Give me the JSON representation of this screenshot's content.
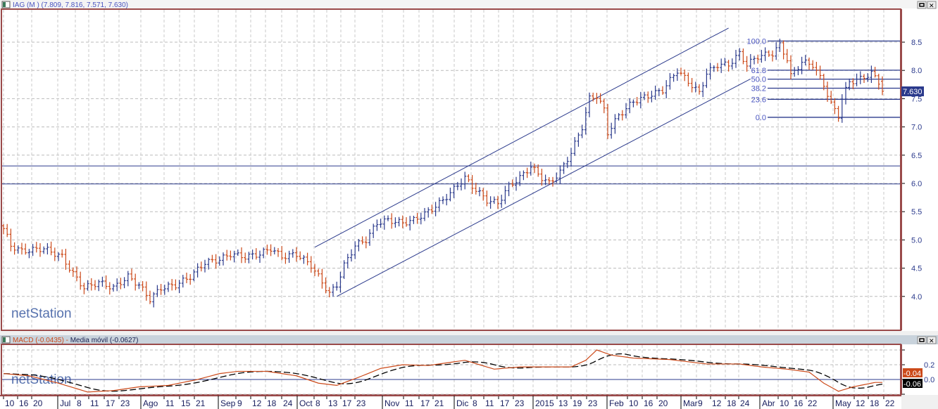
{
  "main_panel": {
    "title": "IAG (M ) (7.809, 7.816, 7.571, 7.630)",
    "last_price_label": "7.630",
    "watermark": "netStation"
  },
  "macd_panel": {
    "macd_label": "MACD (-0.0435)",
    "separator": " - ",
    "signal_label": "Media móvil (-0.0627)",
    "macd_value_label": "-0.04",
    "signal_value_label": "-0.06",
    "watermark": "netStation"
  },
  "window_buttons": {
    "maximize": "▭",
    "close": "✕"
  },
  "colors": {
    "up": "#2b3a8c",
    "down": "#cc4a1a",
    "frame": "#9a4a4a",
    "macd": "#cc4a1a",
    "signal": "#000000"
  },
  "chart_data": [
    {
      "type": "ohlc",
      "title": "IAG (M )",
      "ohlc_last": {
        "open": 7.809,
        "high": 7.816,
        "low": 7.571,
        "close": 7.63
      },
      "close_keypoints_by_bar": [
        [
          0,
          5.2
        ],
        [
          2,
          4.9
        ],
        [
          5,
          4.8
        ],
        [
          11,
          4.85
        ],
        [
          16,
          4.7
        ],
        [
          19,
          4.4
        ],
        [
          22,
          4.15
        ],
        [
          26,
          4.25
        ],
        [
          30,
          4.15
        ],
        [
          34,
          4.35
        ],
        [
          37,
          4.2
        ],
        [
          40,
          3.95
        ],
        [
          43,
          4.15
        ],
        [
          47,
          4.2
        ],
        [
          51,
          4.35
        ],
        [
          55,
          4.6
        ],
        [
          59,
          4.65
        ],
        [
          62,
          4.75
        ],
        [
          66,
          4.7
        ],
        [
          70,
          4.75
        ],
        [
          73,
          4.85
        ],
        [
          76,
          4.7
        ],
        [
          80,
          4.75
        ],
        [
          84,
          4.55
        ],
        [
          87,
          4.25
        ],
        [
          89,
          4.05
        ],
        [
          91,
          4.2
        ],
        [
          93,
          4.55
        ],
        [
          96,
          4.9
        ],
        [
          99,
          5.0
        ],
        [
          102,
          5.3
        ],
        [
          105,
          5.35
        ],
        [
          109,
          5.3
        ],
        [
          112,
          5.35
        ],
        [
          116,
          5.5
        ],
        [
          120,
          5.7
        ],
        [
          123,
          5.9
        ],
        [
          126,
          6.1
        ],
        [
          128,
          5.95
        ],
        [
          132,
          5.7
        ],
        [
          135,
          5.65
        ],
        [
          138,
          5.95
        ],
        [
          141,
          6.1
        ],
        [
          144,
          6.3
        ],
        [
          147,
          6.1
        ],
        [
          149,
          6.0
        ],
        [
          152,
          6.2
        ],
        [
          155,
          6.55
        ],
        [
          158,
          7.0
        ],
        [
          160,
          7.5
        ],
        [
          162,
          7.55
        ],
        [
          164,
          7.3
        ],
        [
          165,
          6.9
        ],
        [
          168,
          7.2
        ],
        [
          172,
          7.45
        ],
        [
          176,
          7.55
        ],
        [
          180,
          7.65
        ],
        [
          184,
          8.0
        ],
        [
          187,
          7.8
        ],
        [
          190,
          7.6
        ],
        [
          192,
          7.95
        ],
        [
          195,
          8.1
        ],
        [
          198,
          8.1
        ],
        [
          201,
          8.3
        ],
        [
          203,
          8.1
        ],
        [
          206,
          8.25
        ],
        [
          210,
          8.3
        ],
        [
          212,
          8.45
        ],
        [
          214,
          8.2
        ],
        [
          215,
          7.9
        ],
        [
          218,
          8.15
        ],
        [
          221,
          8.1
        ],
        [
          224,
          7.75
        ],
        [
          226,
          7.4
        ],
        [
          228,
          7.2
        ],
        [
          229,
          7.5
        ],
        [
          231,
          7.8
        ],
        [
          234,
          7.85
        ],
        [
          237,
          7.95
        ],
        [
          239,
          7.8
        ],
        [
          240,
          7.63
        ]
      ],
      "y_ticks": [
        "8.5",
        "8.0",
        "7.5",
        "7.0",
        "6.5",
        "6.0",
        "5.5",
        "5.0",
        "4.5",
        "4.0"
      ],
      "ylim": [
        3.6,
        8.95
      ],
      "channel": {
        "upper": [
          [
            85,
            4.87
          ],
          [
            198,
            8.75
          ]
        ],
        "lower": [
          [
            91,
            4.0
          ],
          [
            204,
            7.85
          ]
        ]
      },
      "horizontal_lines": [
        6.31,
        5.99
      ],
      "fibonacci": {
        "high": 8.52,
        "low": 7.17,
        "start_bar": 210,
        "levels": [
          {
            "label": "100.0",
            "ratio": 1.0
          },
          {
            "label": "61.8",
            "ratio": 0.618
          },
          {
            "label": "50.0",
            "ratio": 0.5
          },
          {
            "label": "38.2",
            "ratio": 0.382
          },
          {
            "label": "23.6",
            "ratio": 0.236
          },
          {
            "label": "0.0",
            "ratio": 0.0
          }
        ]
      },
      "grid": true
    },
    {
      "type": "line",
      "title": "MACD",
      "series": [
        {
          "name": "MACD",
          "keypoints_by_bar": [
            [
              0,
              0.08
            ],
            [
              7,
              0.05
            ],
            [
              15,
              -0.05
            ],
            [
              23,
              -0.17
            ],
            [
              30,
              -0.15
            ],
            [
              37,
              -0.1
            ],
            [
              45,
              -0.08
            ],
            [
              53,
              0
            ],
            [
              59,
              0.08
            ],
            [
              64,
              0.11
            ],
            [
              72,
              0.11
            ],
            [
              80,
              0.05
            ],
            [
              86,
              -0.05
            ],
            [
              91,
              -0.08
            ],
            [
              97,
              0.03
            ],
            [
              103,
              0.15
            ],
            [
              109,
              0.2
            ],
            [
              116,
              0.19
            ],
            [
              126,
              0.26
            ],
            [
              134,
              0.14
            ],
            [
              141,
              0.17
            ],
            [
              149,
              0.17
            ],
            [
              155,
              0.17
            ],
            [
              159,
              0.26
            ],
            [
              162,
              0.4
            ],
            [
              166,
              0.33
            ],
            [
              172,
              0.29
            ],
            [
              182,
              0.27
            ],
            [
              192,
              0.21
            ],
            [
              201,
              0.21
            ],
            [
              207,
              0.17
            ],
            [
              214,
              0.14
            ],
            [
              220,
              0.1
            ],
            [
              224,
              -0.05
            ],
            [
              228,
              -0.16
            ],
            [
              232,
              -0.1
            ],
            [
              238,
              -0.04
            ],
            [
              240,
              -0.04
            ]
          ]
        },
        {
          "name": "Media móvil",
          "derived": "moving average of MACD"
        }
      ],
      "y_ticks": [
        "0.2",
        "0.0"
      ],
      "zero_line": 0
    }
  ],
  "time_axis": {
    "labels": [
      {
        "t": "10",
        "m": false
      },
      {
        "t": "16",
        "m": false
      },
      {
        "t": "20",
        "m": false
      },
      {
        "t": "Jul",
        "m": true
      },
      {
        "t": "8",
        "m": false
      },
      {
        "t": "11",
        "m": false
      },
      {
        "t": "17",
        "m": false
      },
      {
        "t": "23",
        "m": false
      },
      {
        "t": "Ago",
        "m": true
      },
      {
        "t": "11",
        "m": false
      },
      {
        "t": "15",
        "m": false
      },
      {
        "t": "21",
        "m": false
      },
      {
        "t": "Sep",
        "m": true
      },
      {
        "t": "9",
        "m": false
      },
      {
        "t": "12",
        "m": false
      },
      {
        "t": "18",
        "m": false
      },
      {
        "t": "24",
        "m": false
      },
      {
        "t": "Oct",
        "m": true
      },
      {
        "t": "8",
        "m": false
      },
      {
        "t": "13",
        "m": false
      },
      {
        "t": "17",
        "m": false
      },
      {
        "t": "23",
        "m": false
      },
      {
        "t": "Nov",
        "m": true
      },
      {
        "t": "11",
        "m": false
      },
      {
        "t": "17",
        "m": false
      },
      {
        "t": "21",
        "m": false
      },
      {
        "t": "Dic",
        "m": true
      },
      {
        "t": "8",
        "m": false
      },
      {
        "t": "11",
        "m": false
      },
      {
        "t": "17",
        "m": false
      },
      {
        "t": "23",
        "m": false
      },
      {
        "t": "2015",
        "m": true
      },
      {
        "t": "13",
        "m": false
      },
      {
        "t": "19",
        "m": false
      },
      {
        "t": "23",
        "m": false
      },
      {
        "t": "Feb",
        "m": true
      },
      {
        "t": "10",
        "m": false
      },
      {
        "t": "16",
        "m": false
      },
      {
        "t": "20",
        "m": false
      },
      {
        "t": "Mar",
        "m": true
      },
      {
        "t": "9",
        "m": false
      },
      {
        "t": "12",
        "m": false
      },
      {
        "t": "18",
        "m": false
      },
      {
        "t": "24",
        "m": false
      },
      {
        "t": "Abr",
        "m": true
      },
      {
        "t": "10",
        "m": false
      },
      {
        "t": "16",
        "m": false
      },
      {
        "t": "22",
        "m": false
      },
      {
        "t": "May",
        "m": true
      },
      {
        "t": "12",
        "m": false
      },
      {
        "t": "18",
        "m": false
      },
      {
        "t": "22",
        "m": false
      }
    ]
  }
}
